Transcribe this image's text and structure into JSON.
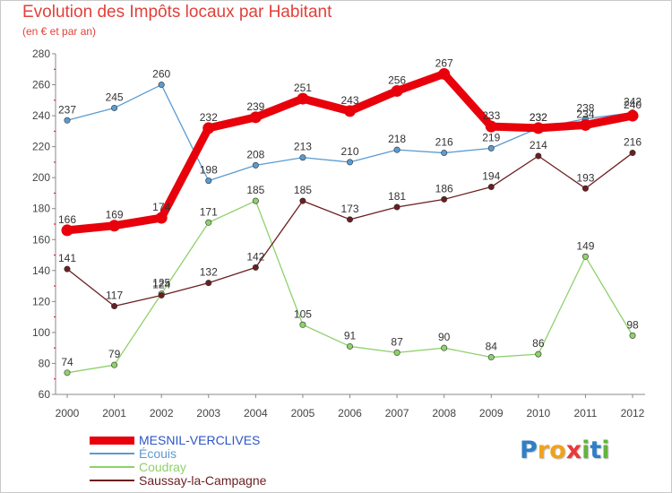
{
  "chart_data": {
    "type": "line",
    "title": "Evolution des Impôts locaux par Habitant",
    "subtitle": "(en € et par an)",
    "xlabel": "",
    "ylabel": "",
    "ylim": [
      60,
      280
    ],
    "yticks": [
      60,
      80,
      100,
      120,
      140,
      160,
      180,
      200,
      220,
      240,
      260,
      280
    ],
    "grid": false,
    "legend_position": "bottom-left",
    "x": [
      "2000",
      "2001",
      "2002",
      "2003",
      "2004",
      "2005",
      "2006",
      "2007",
      "2008",
      "2009",
      "2010",
      "2011",
      "2012"
    ],
    "series": [
      {
        "name": "MESNIL-VERCLIVES",
        "color": "#e8000b",
        "values": [
          166,
          169,
          174,
          232,
          239,
          251,
          243,
          256,
          267,
          233,
          232,
          234,
          240
        ],
        "labels": [
          "166",
          "169",
          "174",
          "232",
          "239",
          "251",
          "243",
          "256",
          "267",
          "233",
          "232",
          "234",
          "240"
        ]
      },
      {
        "name": "Écouis",
        "color": "#5b9bd0",
        "values": [
          237,
          245,
          260,
          198,
          208,
          213,
          210,
          218,
          216,
          219,
          232,
          238,
          242
        ],
        "labels": [
          "237",
          "245",
          "260",
          "198",
          "208",
          "213",
          "210",
          "218",
          "216",
          "219",
          "232",
          "238",
          "242"
        ]
      },
      {
        "name": "Coudray",
        "color": "#8fd16b",
        "values": [
          74,
          79,
          125,
          171,
          185,
          105,
          91,
          87,
          90,
          84,
          86,
          149,
          98
        ],
        "labels": [
          "74",
          "79",
          "125",
          "171",
          "185",
          "105",
          "91",
          "87",
          "90",
          "84",
          "86",
          "149",
          "98"
        ]
      },
      {
        "name": "Saussay-la-Campagne",
        "color": "#6b1e20",
        "values": [
          141,
          117,
          124,
          132,
          142,
          185,
          173,
          181,
          186,
          194,
          214,
          193,
          216
        ],
        "labels": [
          "141",
          "117",
          "124",
          "132",
          "142",
          "185",
          "173",
          "181",
          "186",
          "194",
          "214",
          "193",
          "216"
        ]
      }
    ]
  },
  "branding": {
    "logo_letters": [
      "P",
      "r",
      "o",
      "x",
      "i",
      "t",
      "i"
    ],
    "logo_colors": [
      "#2e7fc7",
      "#f1a21b",
      "#f1a21b",
      "#e8393a",
      "#63b33c",
      "#2e7fc7",
      "#63b33c"
    ]
  }
}
